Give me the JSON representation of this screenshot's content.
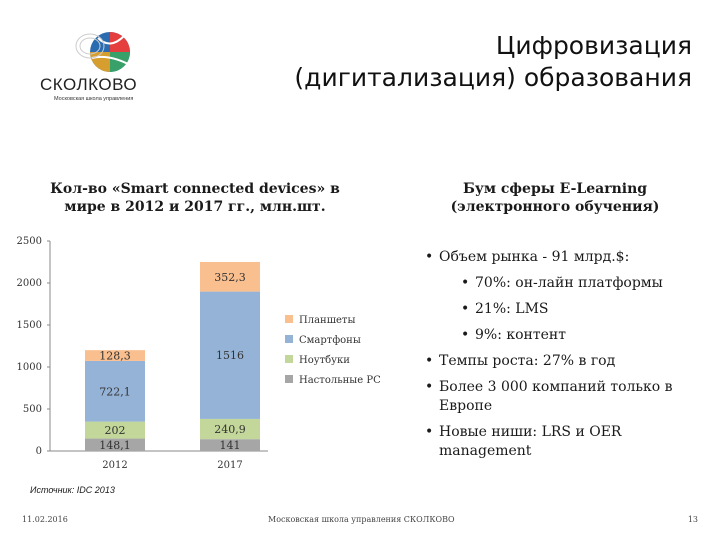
{
  "header": {
    "title_line1": "Цифровизация",
    "title_line2": "(дигитализация) образования",
    "logo_name": "СКОЛКОВО",
    "logo_sub": "Московская школа управления"
  },
  "left": {
    "heading_line1": "Кол-во «Smart connected devices» в",
    "heading_line2": "мире в 2012 и 2017 гг., млн.шт."
  },
  "right": {
    "heading_line1": "Бум сферы E-Learning",
    "heading_line2": "(электронного обучения)",
    "bullets": [
      "Объем рынка - 91 млрд.$:",
      "70%: он-лайн платформы",
      "21%: LMS",
      "9%: контент",
      "Темпы роста: 27% в год",
      "Более 3 000 компаний только в Европе",
      "Новые ниши: LRS и OER management"
    ]
  },
  "chart_data": {
    "type": "bar",
    "stacked": true,
    "categories": [
      "2012",
      "2017"
    ],
    "series": [
      {
        "name": "Настольные PC",
        "values": [
          148.1,
          141
        ],
        "labels": [
          "148,1",
          "141"
        ],
        "color": "#a6a6a6"
      },
      {
        "name": "Ноутбуки",
        "values": [
          202,
          240.9
        ],
        "labels": [
          "202",
          "240,9"
        ],
        "color": "#c4d79b"
      },
      {
        "name": "Смартфоны",
        "values": [
          722.1,
          1516
        ],
        "labels": [
          "722,1",
          "1516"
        ],
        "color": "#95b3d7"
      },
      {
        "name": "Планшеты",
        "values": [
          128.3,
          352.3
        ],
        "labels": [
          "128,3",
          "352,3"
        ],
        "color": "#fabf8f"
      }
    ],
    "legend_order": [
      "Планшеты",
      "Смартфоны",
      "Ноутбуки",
      "Настольные PC"
    ],
    "yticks": [
      "0",
      "500",
      "1000",
      "1500",
      "2000",
      "2500"
    ],
    "ylim": [
      0,
      2500
    ],
    "legend_position": "right"
  },
  "footer": {
    "source": "Источник: IDC 2013",
    "date": "11.02.2016",
    "org": "Московская школа управления СКОЛКОВО",
    "page": "13"
  }
}
